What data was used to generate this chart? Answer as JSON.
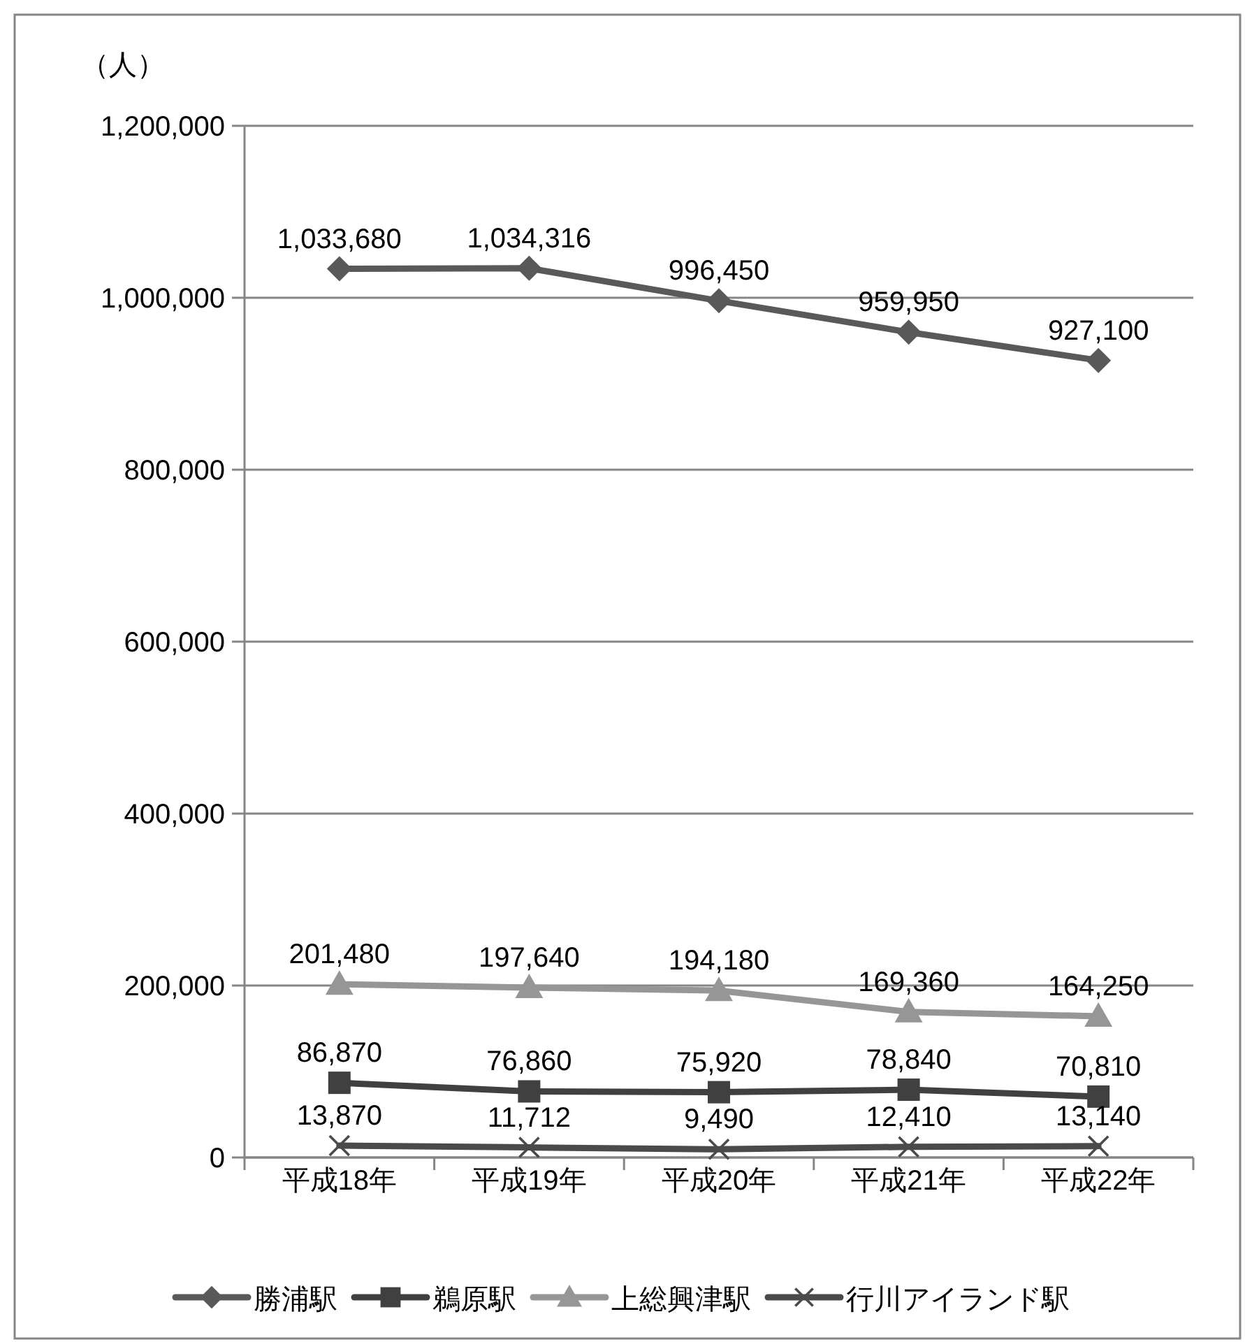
{
  "chart_data": {
    "type": "line",
    "ylabel": "（人）",
    "categories": [
      "平成18年",
      "平成19年",
      "平成20年",
      "平成21年",
      "平成22年"
    ],
    "series": [
      {
        "name": "勝浦駅",
        "color": "#595959",
        "marker": "diamond",
        "values": [
          1033680,
          1034316,
          996450,
          959950,
          927100
        ],
        "value_labels": [
          "1,033,680",
          "1,034,316",
          "996,450",
          "959,950",
          "927,100"
        ]
      },
      {
        "name": "鵜原駅",
        "color": "#404040",
        "marker": "square",
        "values": [
          86870,
          76860,
          75920,
          78840,
          70810
        ],
        "value_labels": [
          "86,870",
          "76,860",
          "75,920",
          "78,840",
          "70,810"
        ]
      },
      {
        "name": "上総興津駅",
        "color": "#969696",
        "marker": "triangle",
        "values": [
          201480,
          197640,
          194180,
          169360,
          164250
        ],
        "value_labels": [
          "201,480",
          "197,640",
          "194,180",
          "169,360",
          "164,250"
        ]
      },
      {
        "name": "行川アイランド駅",
        "color": "#4a4a4a",
        "marker": "cross",
        "values": [
          13870,
          11712,
          9490,
          12410,
          13140
        ],
        "value_labels": [
          "13,870",
          "11,712",
          "9,490",
          "12,410",
          "13,140"
        ]
      }
    ],
    "ylim": [
      0,
      1200000
    ],
    "yticks": [
      0,
      {
        "value": 200000,
        "label": "200,000"
      },
      {
        "value": 400000,
        "label": "400,000"
      },
      {
        "value": 600000,
        "label": "600,000"
      },
      {
        "value": 800000,
        "label": "800,000"
      },
      {
        "value": 1000000,
        "label": "1,000,000"
      },
      {
        "value": 1200000,
        "label": "1,200,000"
      }
    ],
    "grid": "y",
    "legend": "bottom"
  }
}
